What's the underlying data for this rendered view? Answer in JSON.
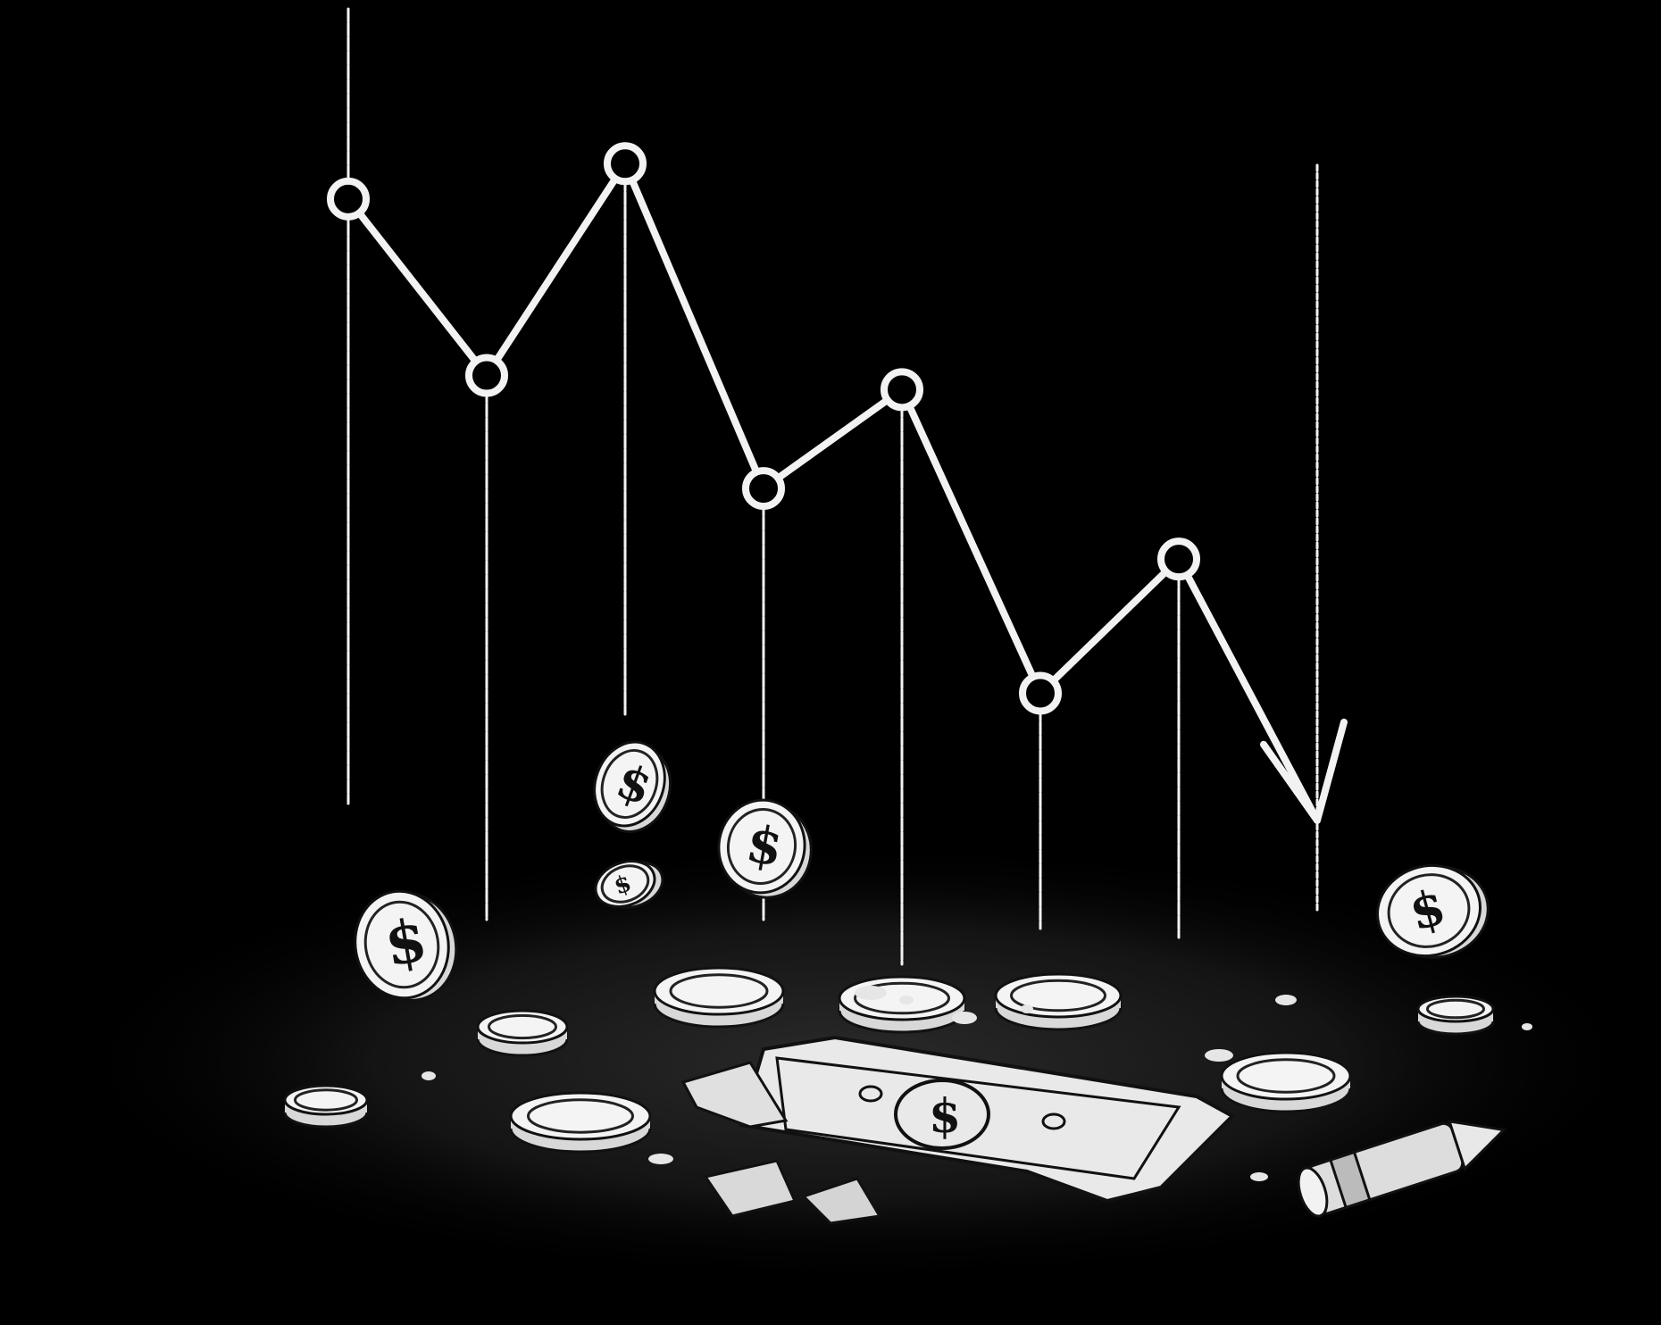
{
  "scene": {
    "background_color": "#000000",
    "ink_color": "#f2f2f2",
    "description_icon": "declining-line-chart-with-scattered-money"
  },
  "chart_data": {
    "type": "line",
    "title": "",
    "xlabel": "",
    "ylabel": "",
    "x": [
      1,
      2,
      3,
      4,
      5,
      6,
      7,
      8
    ],
    "series": [
      {
        "values": [
          8.7,
          6.2,
          9.2,
          4.6,
          6.0,
          1.7,
          3.6,
          -0.1
        ]
      }
    ],
    "ylim": [
      -1,
      10
    ],
    "grid": false,
    "markers": "open-circle",
    "end_marker": "arrowhead"
  },
  "props": {
    "coin_symbol": "$",
    "bill_symbol": "$",
    "icons": [
      "coin-icon",
      "dollar-bill-icon",
      "pencil-icon"
    ]
  }
}
